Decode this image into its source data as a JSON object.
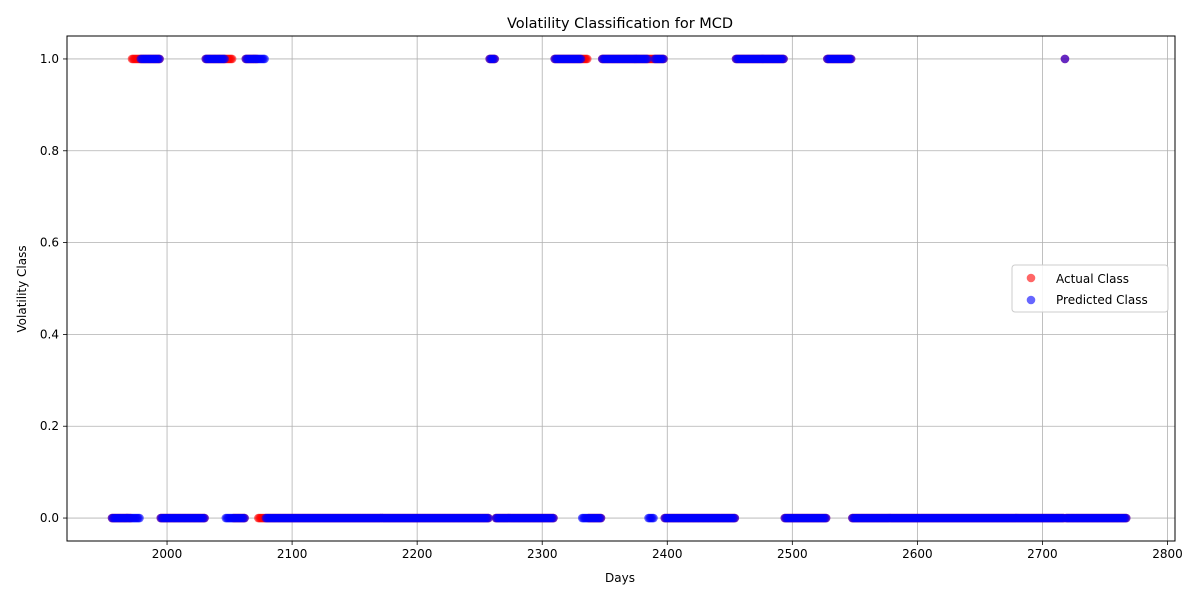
{
  "chart_data": {
    "type": "scatter",
    "title": "Volatility Classification for MCD",
    "xlabel": "Days",
    "ylabel": "Volatility Class",
    "xlim": [
      1920,
      2806
    ],
    "ylim": [
      -0.05,
      1.05
    ],
    "xticks": [
      2000,
      2100,
      2200,
      2300,
      2400,
      2500,
      2600,
      2700,
      2800
    ],
    "yticks": [
      0.0,
      0.2,
      0.4,
      0.6,
      0.8,
      1.0
    ],
    "xtick_labels": [
      "2000",
      "2100",
      "2200",
      "2300",
      "2400",
      "2500",
      "2600",
      "2700",
      "2800"
    ],
    "ytick_labels": [
      "0.0",
      "0.2",
      "0.4",
      "0.6",
      "0.8",
      "1.0"
    ],
    "grid": true,
    "legend_position": "center-right",
    "x_start": 1956,
    "x_end": 2767,
    "series": [
      {
        "name": "Actual Class",
        "color": "#ff0000",
        "opacity": 0.6,
        "segments": [
          {
            "start": 1956,
            "end": 1971,
            "value": 0
          },
          {
            "start": 1972,
            "end": 1994,
            "value": 1
          },
          {
            "start": 1995,
            "end": 2030,
            "value": 0
          },
          {
            "start": 2031,
            "end": 2052,
            "value": 1
          },
          {
            "start": 2053,
            "end": 2062,
            "value": 0
          },
          {
            "start": 2063,
            "end": 2072,
            "value": 1
          },
          {
            "start": 2073,
            "end": 2257,
            "value": 0
          },
          {
            "start": 2258,
            "end": 2262,
            "value": 1
          },
          {
            "start": 2263,
            "end": 2309,
            "value": 0
          },
          {
            "start": 2310,
            "end": 2336,
            "value": 1
          },
          {
            "start": 2337,
            "end": 2347,
            "value": 0
          },
          {
            "start": 2348,
            "end": 2397,
            "value": 1
          },
          {
            "start": 2398,
            "end": 2454,
            "value": 0
          },
          {
            "start": 2455,
            "end": 2493,
            "value": 1
          },
          {
            "start": 2494,
            "end": 2527,
            "value": 0
          },
          {
            "start": 2528,
            "end": 2547,
            "value": 1
          },
          {
            "start": 2548,
            "end": 2717,
            "value": 0
          },
          {
            "start": 2718,
            "end": 2718,
            "value": 1
          },
          {
            "start": 2719,
            "end": 2767,
            "value": 0
          }
        ]
      },
      {
        "name": "Predicted Class",
        "color": "#0000ff",
        "opacity": 0.6,
        "segments": [
          {
            "start": 1956,
            "end": 1978,
            "value": 0
          },
          {
            "start": 1979,
            "end": 1994,
            "value": 1
          },
          {
            "start": 1995,
            "end": 2030,
            "value": 0
          },
          {
            "start": 2031,
            "end": 2046,
            "value": 1
          },
          {
            "start": 2047,
            "end": 2062,
            "value": 0
          },
          {
            "start": 2063,
            "end": 2078,
            "value": 1
          },
          {
            "start": 2079,
            "end": 2257,
            "value": 0
          },
          {
            "start": 2258,
            "end": 2262,
            "value": 1
          },
          {
            "start": 2263,
            "end": 2309,
            "value": 0
          },
          {
            "start": 2310,
            "end": 2331,
            "value": 1
          },
          {
            "start": 2332,
            "end": 2347,
            "value": 0
          },
          {
            "start": 2348,
            "end": 2384,
            "value": 1
          },
          {
            "start": 2385,
            "end": 2389,
            "value": 0
          },
          {
            "start": 2390,
            "end": 2397,
            "value": 1
          },
          {
            "start": 2398,
            "end": 2454,
            "value": 0
          },
          {
            "start": 2455,
            "end": 2493,
            "value": 1
          },
          {
            "start": 2494,
            "end": 2527,
            "value": 0
          },
          {
            "start": 2528,
            "end": 2547,
            "value": 1
          },
          {
            "start": 2548,
            "end": 2717,
            "value": 0
          },
          {
            "start": 2718,
            "end": 2718,
            "value": 1
          },
          {
            "start": 2719,
            "end": 2767,
            "value": 0
          }
        ]
      }
    ]
  }
}
